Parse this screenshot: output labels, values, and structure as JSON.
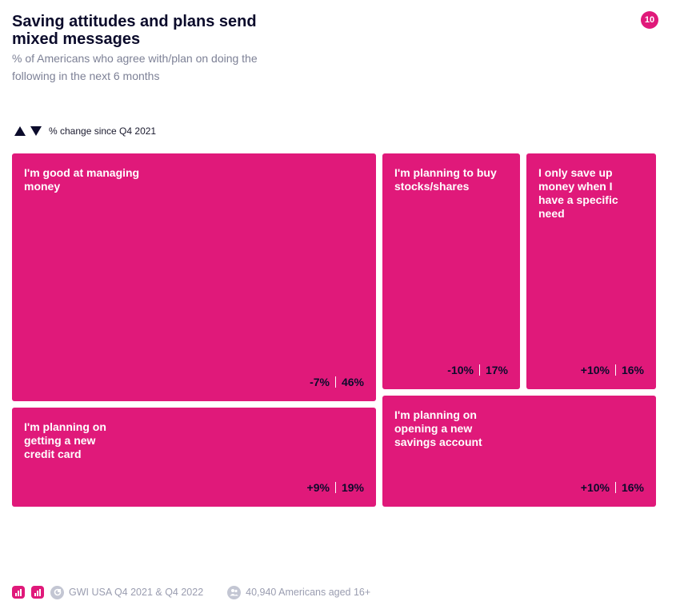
{
  "header": {
    "title": "Saving attitudes and plans send mixed messages",
    "subtitle": "% of Americans who agree with/plan on doing the following in the next 6 months",
    "page_number": "10"
  },
  "legend": {
    "label": "% change since Q4 2021"
  },
  "colors": {
    "accent": "#e0197a",
    "dark": "#0b0b2b",
    "muted": "#7d8196"
  },
  "chart_data": {
    "type": "treemap",
    "title": "Saving attitudes and plans send mixed messages",
    "subtitle": "% of Americans who agree with/plan on doing the following in the next 6 months",
    "legend": "% change since Q4 2021",
    "items": [
      {
        "label": "I'm good at managing money",
        "change": "-7%",
        "value": "46%"
      },
      {
        "label": "I'm planning to buy stocks/shares",
        "change": "-10%",
        "value": "17%"
      },
      {
        "label": "I only save up money when I have a specific need",
        "change": "+10%",
        "value": "16%"
      },
      {
        "label": "I'm planning on getting a new credit card",
        "change": "+9%",
        "value": "19%"
      },
      {
        "label": "I'm planning on opening a new savings account",
        "change": "+10%",
        "value": "16%"
      }
    ]
  },
  "footer": {
    "source": "GWI USA Q4 2021 & Q4 2022",
    "sample": "40,940 Americans aged 16+"
  }
}
